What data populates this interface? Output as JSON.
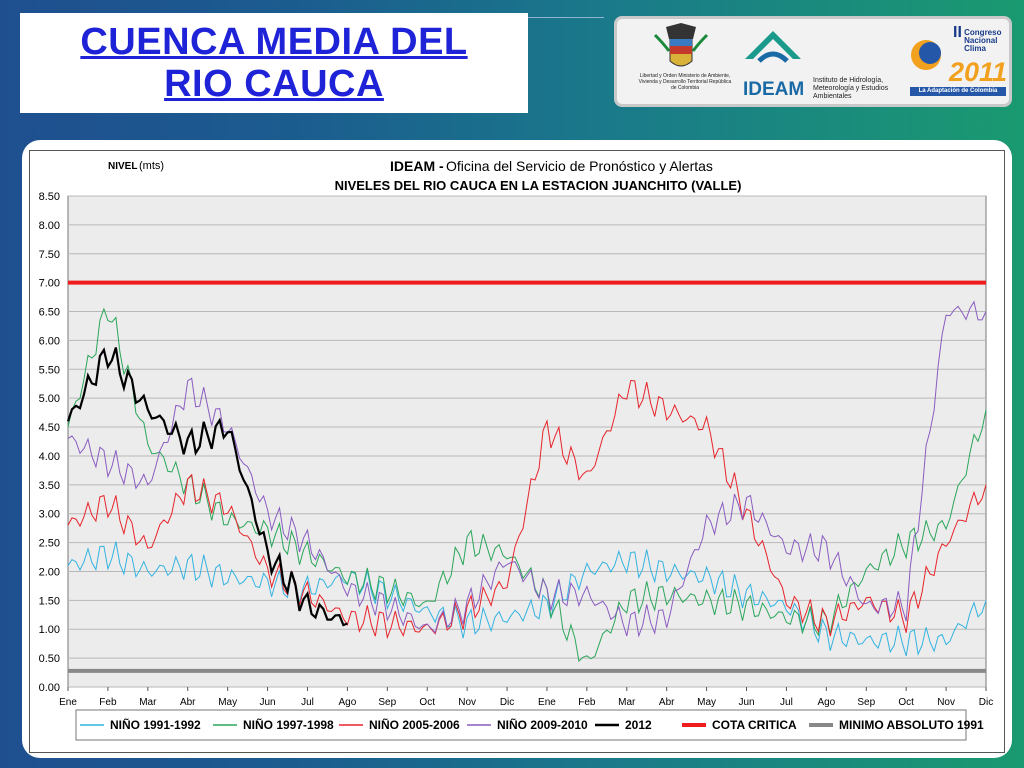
{
  "page": {
    "title_line1": "CUENCA  MEDIA DEL",
    "title_line2": "RIO  CAUCA"
  },
  "logos": {
    "ministerio_text": "Libertad y Orden Ministerio de Ambiente, Vivienda y Desarrollo Territorial República de Colombia",
    "ideam_word": "IDEAM",
    "ideam_desc": "Instituto de Hidrología, Meteorología y Estudios Ambientales",
    "congreso_title": "Congreso Nacional Clima",
    "congreso_numeral": "II",
    "congreso_year": "2011",
    "congreso_tagline": "La Adaptación de Colombia"
  },
  "colors": {
    "title_blue": "#1f23d8",
    "nino_1991": "#33b3e0",
    "nino_1997": "#2aa65a",
    "nino_2005": "#e8232a",
    "nino_2009": "#8a5cc0",
    "y2012": "#000000",
    "cota": "#ee1c1c",
    "minimo": "#888888",
    "plot_bg": "#ececec"
  },
  "chart_data": {
    "type": "line",
    "title_prefix": "IDEAM - ",
    "title_rest": "Oficina del Servicio de Pronóstico y Alertas",
    "subtitle": "NIVELES DEL RIO CAUCA EN LA ESTACION JUANCHITO (VALLE)",
    "ylabel_main": "NIVEL",
    "ylabel_unit": "(mts)",
    "ylim": [
      0,
      8.5
    ],
    "yticks": [
      "0.00",
      "0.50",
      "1.00",
      "1.50",
      "2.00",
      "2.50",
      "3.00",
      "3.50",
      "4.00",
      "4.50",
      "5.00",
      "5.50",
      "6.00",
      "6.50",
      "7.00",
      "7.50",
      "8.00",
      "8.50"
    ],
    "xticks": [
      "Ene",
      "Feb",
      "Mar",
      "Abr",
      "May",
      "Jun",
      "Jul",
      "Ago",
      "Sep",
      "Oct",
      "Nov",
      "Dic",
      "Ene",
      "Feb",
      "Mar",
      "Abr",
      "May",
      "Jun",
      "Jul",
      "Ago",
      "Sep",
      "Oct",
      "Nov",
      "Dic"
    ],
    "grid": true,
    "legend_position": "bottom",
    "reference_lines": [
      {
        "name": "COTA CRITICA",
        "value": 7.0
      },
      {
        "name": "MINIMO ABSOLUTO 1991",
        "value": 0.28
      }
    ],
    "series": [
      {
        "name": "NIÑO 1991-1992",
        "color_key": "nino_1991",
        "values": [
          2.1,
          2.3,
          2.0,
          2.1,
          1.9,
          1.8,
          1.7,
          1.9,
          1.6,
          1.3,
          1.1,
          1.2,
          1.4,
          2.0,
          2.2,
          2.0,
          1.9,
          1.6,
          1.4,
          0.9,
          0.8,
          0.8,
          0.8,
          1.5
        ]
      },
      {
        "name": "NIÑO 1997-1998",
        "color_key": "nino_1997",
        "values": [
          4.5,
          6.6,
          4.2,
          3.5,
          2.9,
          2.7,
          2.3,
          1.9,
          1.7,
          1.4,
          2.5,
          2.3,
          1.6,
          0.4,
          1.5,
          1.6,
          1.5,
          1.4,
          1.2,
          1.1,
          2.0,
          2.5,
          2.8,
          4.8
        ]
      },
      {
        "name": "NIÑO 2005-2006",
        "color_key": "nino_2005",
        "values": [
          2.8,
          3.2,
          2.4,
          3.5,
          3.1,
          2.0,
          1.6,
          1.2,
          1.1,
          1.0,
          1.3,
          1.8,
          4.5,
          3.6,
          5.2,
          4.8,
          4.5,
          3.0,
          1.5,
          1.1,
          1.5,
          1.2,
          2.5,
          3.5
        ]
      },
      {
        "name": "NIÑO 2009-2010",
        "color_key": "nino_2009",
        "values": [
          4.3,
          3.9,
          3.5,
          5.2,
          4.5,
          3.0,
          2.5,
          1.7,
          1.4,
          1.0,
          1.4,
          2.2,
          1.6,
          1.6,
          1.1,
          1.2,
          2.8,
          3.2,
          2.4,
          2.4,
          1.4,
          1.4,
          6.5,
          6.5
        ]
      },
      {
        "name": "2012",
        "color_key": "y2012",
        "values": [
          4.6,
          5.8,
          4.8,
          4.2,
          4.5,
          2.3,
          1.4,
          1.1
        ]
      }
    ]
  }
}
